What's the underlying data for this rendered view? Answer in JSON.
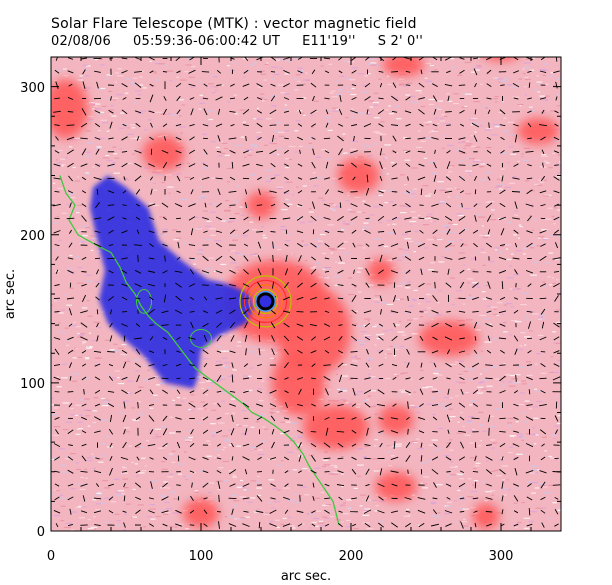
{
  "title": "Solar Flare Telescope (MTK) : vector magnetic field",
  "subtitle": {
    "date": "02/08/06",
    "time_range": "05:59:36-06:00:42 UT",
    "lon": "E11'19''",
    "lat": "S 2' 0''"
  },
  "chart_data": {
    "type": "heatmap",
    "xlabel": "arc sec.",
    "ylabel": "arc sec.",
    "xlim": [
      0,
      340
    ],
    "ylim": [
      0,
      320
    ],
    "x_ticks": [
      "0",
      "100",
      "200",
      "300"
    ],
    "y_ticks": [
      "0",
      "100",
      "200",
      "300"
    ],
    "colors": {
      "positive": "#ff5a5a",
      "negative": "#3030e0",
      "background_tint": "#f3b6c0",
      "arrows": "#000000",
      "neutral_line": "#40c840",
      "spot_core": "#000000",
      "spot_ring": "#40a0ff"
    },
    "sunspot": {
      "x": 143,
      "y": 155
    },
    "negative_region_polygon": [
      [
        28,
        232
      ],
      [
        38,
        240
      ],
      [
        50,
        232
      ],
      [
        65,
        218
      ],
      [
        72,
        196
      ],
      [
        88,
        182
      ],
      [
        104,
        170
      ],
      [
        120,
        166
      ],
      [
        132,
        160
      ],
      [
        135,
        150
      ],
      [
        130,
        140
      ],
      [
        112,
        132
      ],
      [
        100,
        122
      ],
      [
        98,
        104
      ],
      [
        95,
        96
      ],
      [
        76,
        100
      ],
      [
        62,
        118
      ],
      [
        48,
        130
      ],
      [
        38,
        140
      ],
      [
        32,
        156
      ],
      [
        36,
        176
      ],
      [
        30,
        200
      ],
      [
        26,
        218
      ]
    ],
    "positive_blobs": [
      {
        "x": 150,
        "y": 155,
        "rx": 35,
        "ry": 28
      },
      {
        "x": 175,
        "y": 135,
        "rx": 25,
        "ry": 30
      },
      {
        "x": 165,
        "y": 100,
        "rx": 18,
        "ry": 22
      },
      {
        "x": 190,
        "y": 70,
        "rx": 22,
        "ry": 15
      },
      {
        "x": 230,
        "y": 75,
        "rx": 12,
        "ry": 10
      },
      {
        "x": 10,
        "y": 285,
        "rx": 15,
        "ry": 20
      },
      {
        "x": 75,
        "y": 255,
        "rx": 14,
        "ry": 12
      },
      {
        "x": 205,
        "y": 240,
        "rx": 14,
        "ry": 12
      },
      {
        "x": 220,
        "y": 175,
        "rx": 9,
        "ry": 9
      },
      {
        "x": 235,
        "y": 315,
        "rx": 14,
        "ry": 8
      },
      {
        "x": 300,
        "y": 325,
        "rx": 14,
        "ry": 8
      },
      {
        "x": 265,
        "y": 130,
        "rx": 20,
        "ry": 12
      },
      {
        "x": 325,
        "y": 270,
        "rx": 14,
        "ry": 9
      },
      {
        "x": 230,
        "y": 30,
        "rx": 14,
        "ry": 10
      },
      {
        "x": 290,
        "y": 10,
        "rx": 9,
        "ry": 9
      },
      {
        "x": 100,
        "y": 12,
        "rx": 12,
        "ry": 10
      },
      {
        "x": 140,
        "y": 220,
        "rx": 10,
        "ry": 9
      }
    ],
    "neutral_line": [
      [
        6,
        240
      ],
      [
        10,
        228
      ],
      [
        16,
        220
      ],
      [
        12,
        210
      ],
      [
        18,
        200
      ],
      [
        25,
        196
      ],
      [
        32,
        192
      ],
      [
        40,
        188
      ],
      [
        46,
        178
      ],
      [
        50,
        168
      ],
      [
        56,
        160
      ],
      [
        60,
        152
      ],
      [
        65,
        145
      ],
      [
        70,
        140
      ],
      [
        78,
        134
      ],
      [
        84,
        126
      ],
      [
        90,
        118
      ],
      [
        96,
        110
      ],
      [
        104,
        104
      ],
      [
        112,
        98
      ],
      [
        120,
        92
      ],
      [
        128,
        86
      ],
      [
        134,
        80
      ],
      [
        142,
        76
      ],
      [
        148,
        72
      ],
      [
        156,
        66
      ],
      [
        162,
        60
      ],
      [
        168,
        52
      ],
      [
        172,
        44
      ],
      [
        176,
        38
      ],
      [
        180,
        32
      ],
      [
        184,
        26
      ],
      [
        188,
        20
      ],
      [
        190,
        12
      ],
      [
        192,
        4
      ]
    ],
    "contour_rings": [
      8,
      11,
      14,
      17
    ]
  }
}
